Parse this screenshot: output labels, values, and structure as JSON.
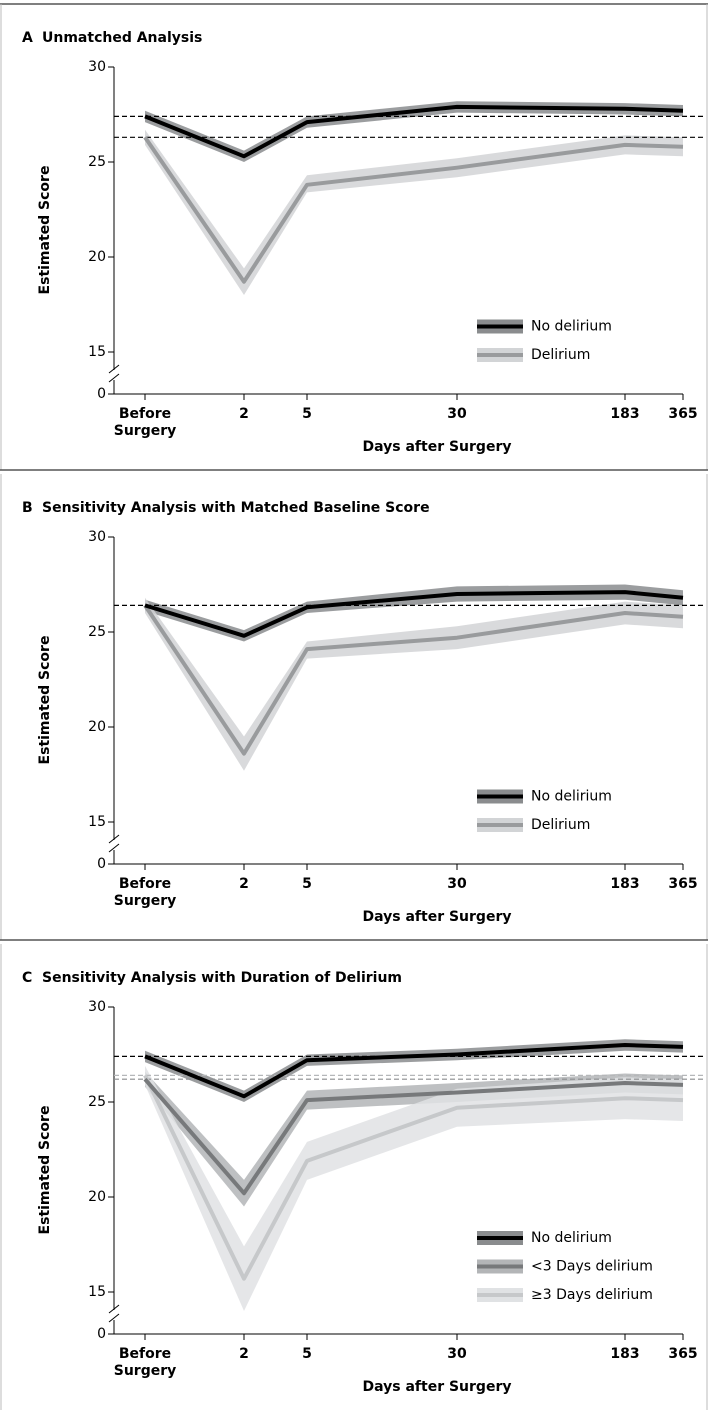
{
  "chart_data": [
    {
      "type": "line",
      "panel_label": "A",
      "title": "Unmatched Analysis",
      "y_label": "Estimated Score",
      "x_label": "Days after Surgery",
      "categories": [
        "Before Surgery",
        "2",
        "5",
        "30",
        "183",
        "365"
      ],
      "ylim": [
        0,
        30
      ],
      "yticks": [
        0,
        15,
        20,
        25,
        30
      ],
      "broken_axis": true,
      "legend": "lower right",
      "reference_lines": [
        {
          "value": 27.4,
          "color": "#000000"
        },
        {
          "value": 26.3,
          "color": "#000000"
        }
      ],
      "series": [
        {
          "name": "No delirium",
          "color": "#000000",
          "band_color": "#8a8c8e",
          "values": [
            27.4,
            25.3,
            27.1,
            27.9,
            27.8,
            27.7
          ],
          "lower": [
            27.1,
            25.0,
            26.8,
            27.6,
            27.5,
            27.4
          ],
          "upper": [
            27.7,
            25.6,
            27.4,
            28.2,
            28.1,
            28.0
          ]
        },
        {
          "name": "Delirium",
          "color": "#999b9d",
          "band_color": "#d2d4d6",
          "values": [
            26.3,
            18.7,
            23.8,
            24.7,
            25.9,
            25.8
          ],
          "lower": [
            25.9,
            18.0,
            23.4,
            24.2,
            25.4,
            25.3
          ],
          "upper": [
            26.7,
            19.4,
            24.3,
            25.2,
            26.4,
            26.3
          ]
        }
      ]
    },
    {
      "type": "line",
      "panel_label": "B",
      "title": "Sensitivity Analysis with Matched Baseline Score",
      "y_label": "Estimated Score",
      "x_label": "Days after Surgery",
      "categories": [
        "Before Surgery",
        "2",
        "5",
        "30",
        "183",
        "365"
      ],
      "ylim": [
        0,
        30
      ],
      "yticks": [
        0,
        15,
        20,
        25,
        30
      ],
      "broken_axis": true,
      "legend": "lower right",
      "reference_lines": [
        {
          "value": 26.4,
          "color": "#000000"
        }
      ],
      "series": [
        {
          "name": "No delirium",
          "color": "#000000",
          "band_color": "#8a8c8e",
          "values": [
            26.4,
            24.8,
            26.3,
            27.0,
            27.1,
            26.8
          ],
          "lower": [
            26.1,
            24.5,
            26.0,
            26.6,
            26.7,
            26.4
          ],
          "upper": [
            26.7,
            25.1,
            26.6,
            27.4,
            27.5,
            27.2
          ]
        },
        {
          "name": "Delirium",
          "color": "#999b9d",
          "band_color": "#d2d4d6",
          "values": [
            26.4,
            18.6,
            24.1,
            24.7,
            26.0,
            25.8
          ],
          "lower": [
            26.0,
            17.7,
            23.6,
            24.1,
            25.4,
            25.2
          ],
          "upper": [
            26.8,
            19.5,
            24.5,
            25.3,
            26.6,
            26.4
          ]
        }
      ]
    },
    {
      "type": "line",
      "panel_label": "C",
      "title": "Sensitivity Analysis with Duration of Delirium",
      "y_label": "Estimated Score",
      "x_label": "Days after Surgery",
      "categories": [
        "Before Surgery",
        "2",
        "5",
        "30",
        "183",
        "365"
      ],
      "ylim": [
        0,
        30
      ],
      "yticks": [
        0,
        15,
        20,
        25,
        30
      ],
      "broken_axis": true,
      "legend": "lower right",
      "reference_lines": [
        {
          "value": 27.4,
          "color": "#000000"
        },
        {
          "value": 26.4,
          "color": "#b5b7b9"
        },
        {
          "value": 26.2,
          "color": "#8a8c8e"
        }
      ],
      "series": [
        {
          "name": "No delirium",
          "color": "#000000",
          "band_color": "#8a8c8e",
          "values": [
            27.4,
            25.3,
            27.2,
            27.5,
            28.0,
            27.9
          ],
          "lower": [
            27.1,
            25.0,
            26.9,
            27.2,
            27.7,
            27.6
          ],
          "upper": [
            27.7,
            25.6,
            27.5,
            27.8,
            28.3,
            28.2
          ]
        },
        {
          "name": "<3 Days delirium",
          "color": "#77797b",
          "band_color": "#b3b5b7",
          "values": [
            26.2,
            20.2,
            25.1,
            25.5,
            26.0,
            25.9
          ],
          "lower": [
            25.8,
            19.5,
            24.6,
            25.0,
            25.5,
            25.4
          ],
          "upper": [
            26.6,
            20.9,
            25.6,
            26.0,
            26.5,
            26.4
          ]
        },
        {
          "name": "≥3 Days delirium",
          "color": "#c6c8ca",
          "band_color": "#e0e2e4",
          "values": [
            26.4,
            15.7,
            21.9,
            24.7,
            25.2,
            25.1
          ],
          "lower": [
            25.9,
            14.0,
            20.9,
            23.7,
            24.1,
            24.0
          ],
          "upper": [
            26.9,
            17.4,
            22.9,
            25.7,
            26.3,
            26.2
          ]
        }
      ]
    }
  ]
}
